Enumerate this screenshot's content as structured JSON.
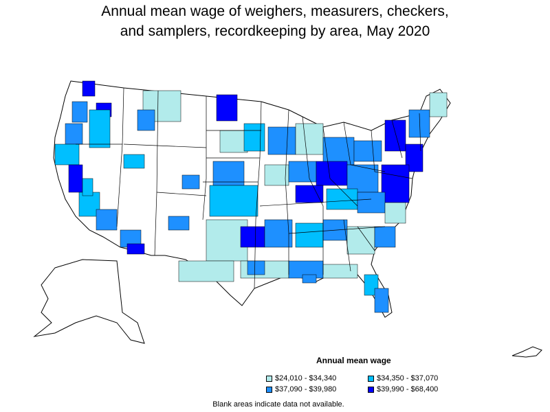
{
  "title_line1": "Annual mean wage of weighers, measurers, checkers,",
  "title_line2": "and samplers, recordkeeping by area, May 2020",
  "legend": {
    "title": "Annual mean wage",
    "items": [
      {
        "label": "$24,010 - $34,340",
        "color": "#b2ebeb"
      },
      {
        "label": "$34,350 - $37,070",
        "color": "#00bfff"
      },
      {
        "label": "$37,090 - $39,980",
        "color": "#1e90ff"
      },
      {
        "label": "$39,990 - $68,400",
        "color": "#0000ff"
      }
    ]
  },
  "note": "Blank areas indicate data not available."
}
